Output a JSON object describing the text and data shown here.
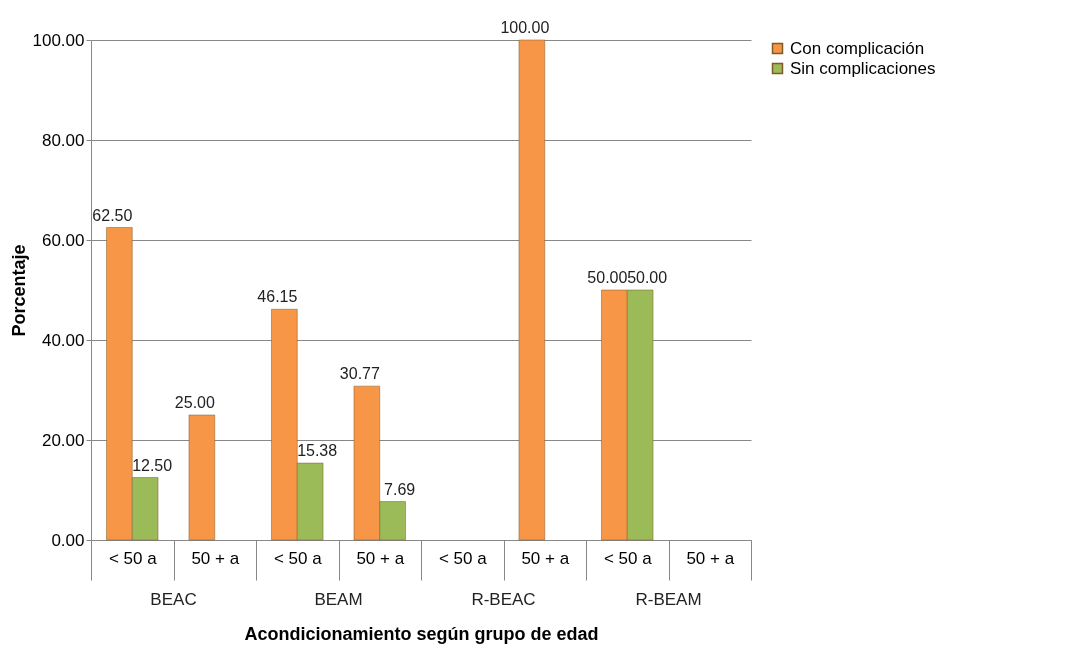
{
  "chart_data": {
    "type": "bar",
    "xlabel": "Acondicionamiento según grupo de edad",
    "ylabel": "Porcentaje",
    "categories": [
      "< 50 a",
      "50 + a",
      "< 50 a",
      "50 + a",
      "< 50 a",
      "50 + a",
      "< 50 a",
      "50 + a"
    ],
    "annotations": [
      "BEAC",
      "BEAM",
      "R-BEAC",
      "R-BEAM"
    ],
    "series": [
      {
        "name": "Con complicación",
        "color": "#f79646",
        "values": [
          62.5,
          25.0,
          46.15,
          30.77,
          null,
          100.0,
          50.0,
          null
        ],
        "value_labels": [
          "62.50",
          "25.00",
          "46.15",
          "30.77",
          null,
          "100.00",
          "50.00",
          null
        ]
      },
      {
        "name": "Sin complicaciones",
        "color": "#9bbb59",
        "values": [
          12.5,
          null,
          15.38,
          7.69,
          null,
          null,
          50.0,
          null
        ],
        "value_labels": [
          "12.50",
          null,
          "15.38",
          "7.69",
          null,
          null,
          "50.00",
          null
        ]
      }
    ],
    "ylim": [
      0,
      100
    ],
    "yticks": [
      {
        "value": 0,
        "label": "0.00"
      },
      {
        "value": 20,
        "label": "20.00"
      },
      {
        "value": 40,
        "label": "40.00"
      },
      {
        "value": 60,
        "label": "60.00"
      },
      {
        "value": 80,
        "label": "80.00"
      },
      {
        "value": 100,
        "label": "100.00"
      }
    ],
    "grid": "y",
    "legend": "right"
  }
}
